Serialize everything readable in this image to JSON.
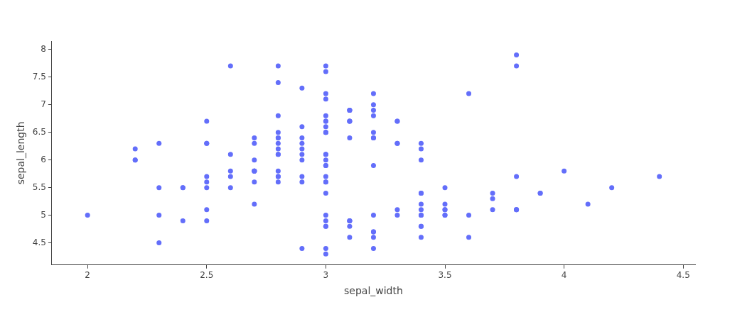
{
  "chart_data": {
    "type": "scatter",
    "xlabel": "sepal_width",
    "ylabel": "sepal_length",
    "marker": "circle",
    "grid": false,
    "xlim": [
      1.85,
      4.55
    ],
    "xticks": [
      2,
      2.5,
      3,
      3.5,
      4,
      4.5
    ],
    "ylim": [
      4.1,
      8.15
    ],
    "yticks": [
      4.5,
      5,
      5.5,
      6,
      6.5,
      7,
      7.5,
      8
    ],
    "series": [
      {
        "color": "#636efa",
        "x": [
          3.5,
          3.0,
          3.2,
          3.1,
          3.6,
          3.9,
          3.4,
          3.4,
          2.9,
          3.1,
          3.7,
          3.4,
          3.0,
          3.0,
          4.0,
          4.4,
          3.9,
          3.5,
          3.8,
          3.8,
          3.4,
          3.7,
          3.6,
          3.3,
          3.4,
          3.0,
          3.4,
          3.5,
          3.4,
          3.2,
          3.1,
          3.4,
          4.1,
          4.2,
          3.1,
          3.2,
          3.5,
          3.1,
          3.0,
          3.4,
          3.5,
          2.3,
          3.2,
          3.5,
          3.8,
          3.0,
          3.8,
          3.2,
          3.7,
          3.3,
          3.2,
          3.2,
          3.1,
          2.3,
          2.8,
          2.8,
          3.3,
          2.4,
          2.9,
          2.7,
          2.0,
          3.0,
          2.2,
          2.9,
          2.9,
          3.1,
          3.0,
          2.7,
          2.2,
          2.5,
          3.2,
          2.8,
          2.5,
          2.8,
          2.9,
          3.0,
          2.8,
          3.0,
          2.9,
          2.6,
          2.4,
          2.4,
          2.7,
          2.7,
          3.0,
          3.4,
          3.1,
          2.3,
          3.0,
          2.5,
          2.6,
          3.0,
          2.6,
          2.3,
          2.7,
          3.0,
          2.9,
          2.9,
          2.5,
          2.8,
          3.3,
          2.7,
          3.0,
          2.9,
          3.0,
          3.0,
          2.5,
          2.9,
          2.5,
          3.6,
          3.2,
          2.7,
          3.0,
          2.5,
          2.8,
          3.2,
          3.0,
          3.8,
          2.6,
          2.2,
          3.2,
          2.8,
          2.8,
          2.7,
          3.3,
          3.2,
          2.8,
          3.0,
          2.8,
          3.0,
          2.8,
          3.8,
          2.8,
          2.8,
          2.6,
          3.0,
          3.4,
          3.1,
          3.0,
          3.1,
          3.1,
          3.1,
          2.7,
          3.2,
          3.3,
          3.0,
          2.5,
          3.0,
          3.4,
          3.0
        ],
        "values": [
          5.1,
          4.9,
          4.7,
          4.6,
          5.0,
          5.4,
          4.6,
          5.0,
          4.4,
          4.9,
          5.4,
          4.8,
          4.8,
          4.3,
          5.8,
          5.7,
          5.4,
          5.1,
          5.7,
          5.1,
          5.4,
          5.1,
          4.6,
          5.1,
          4.8,
          5.0,
          5.0,
          5.2,
          5.2,
          4.7,
          4.8,
          5.4,
          5.2,
          5.5,
          4.9,
          5.0,
          5.5,
          4.9,
          4.4,
          5.1,
          5.0,
          4.5,
          4.4,
          5.0,
          5.1,
          4.8,
          5.1,
          4.6,
          5.3,
          5.0,
          7.0,
          6.4,
          6.9,
          5.5,
          6.5,
          5.7,
          6.3,
          4.9,
          6.6,
          5.2,
          5.0,
          5.9,
          6.0,
          6.1,
          5.6,
          6.7,
          5.6,
          5.8,
          6.2,
          5.6,
          5.9,
          6.1,
          6.3,
          6.1,
          6.4,
          6.6,
          6.8,
          6.7,
          6.0,
          5.7,
          5.5,
          5.5,
          5.8,
          6.0,
          5.4,
          6.0,
          6.7,
          6.3,
          5.6,
          5.5,
          5.5,
          6.1,
          5.8,
          5.0,
          5.6,
          5.7,
          5.7,
          6.2,
          5.1,
          5.7,
          6.3,
          5.8,
          7.1,
          6.3,
          6.5,
          7.6,
          4.9,
          7.3,
          6.7,
          7.2,
          6.5,
          6.4,
          6.8,
          5.7,
          5.8,
          6.4,
          6.5,
          7.7,
          7.7,
          6.0,
          6.9,
          5.6,
          7.7,
          6.3,
          6.7,
          7.2,
          6.2,
          6.1,
          6.4,
          7.2,
          7.4,
          7.9,
          6.4,
          6.3,
          6.1,
          7.7,
          6.3,
          6.4,
          6.0,
          6.9,
          6.7,
          6.9,
          5.8,
          6.8,
          6.7,
          6.7,
          6.3,
          6.5,
          6.2,
          5.9
        ]
      }
    ]
  }
}
